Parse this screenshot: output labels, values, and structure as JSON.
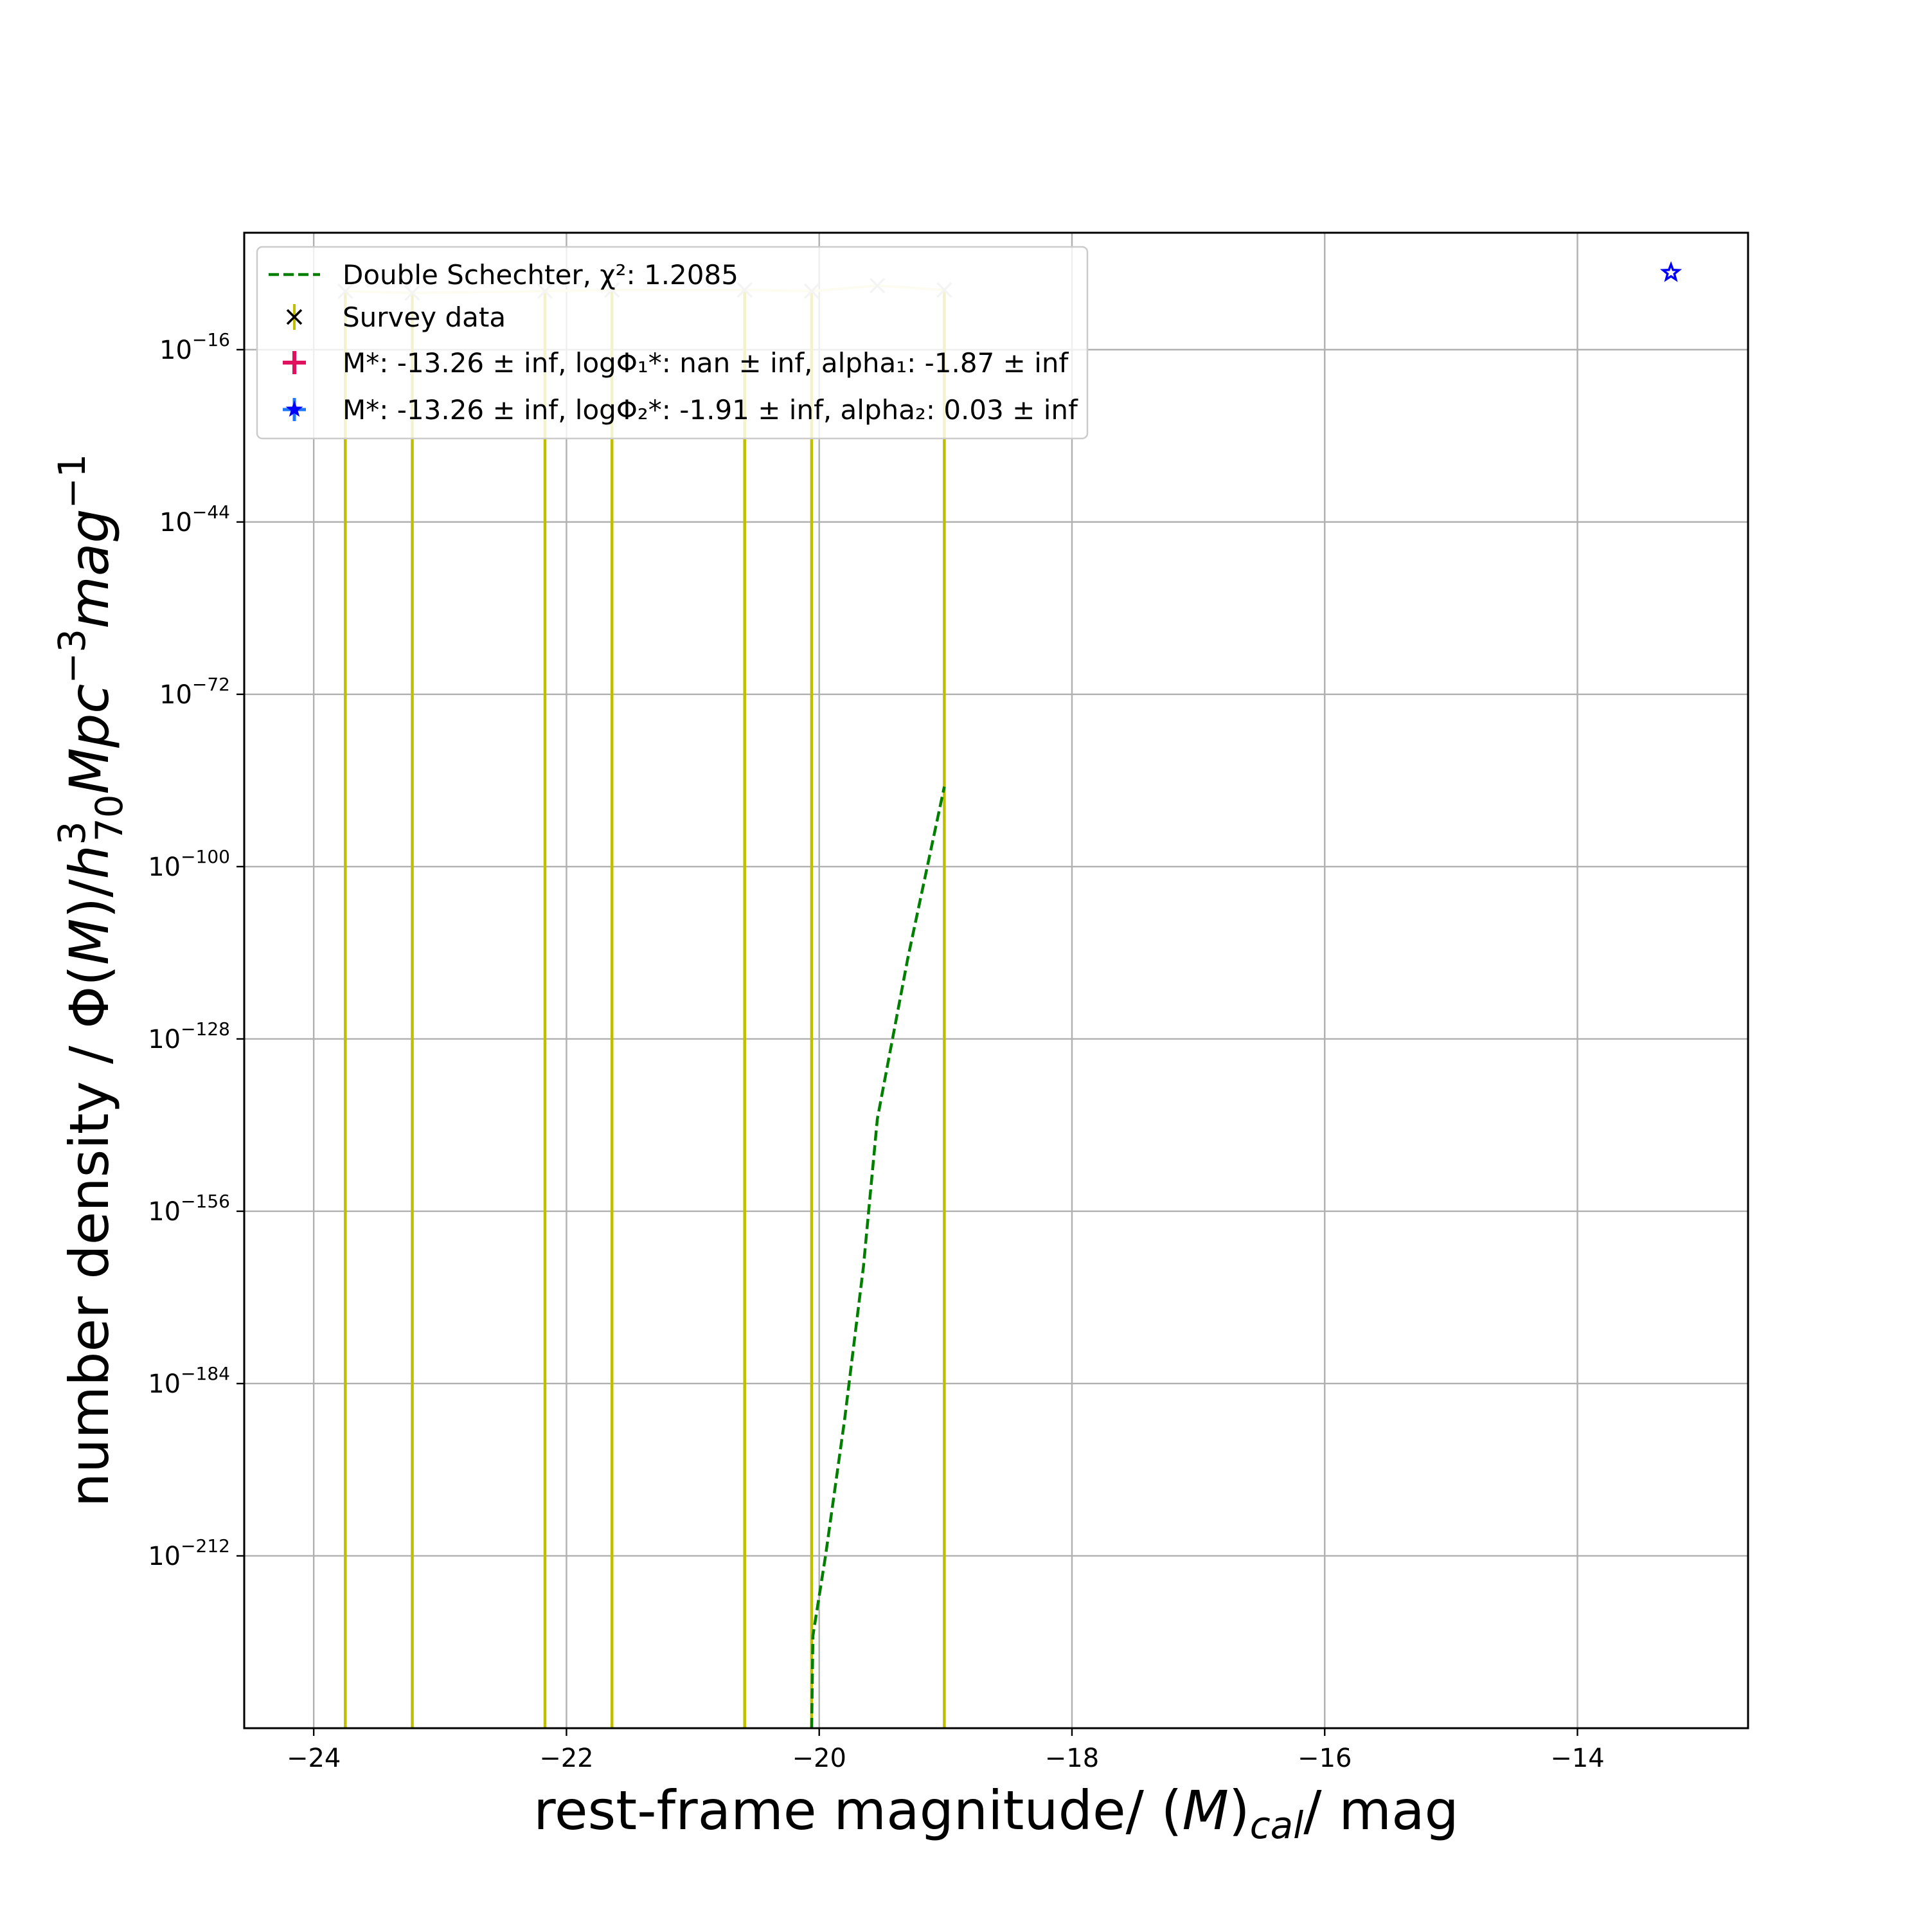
{
  "chart_data": {
    "type": "line",
    "xlabel": "rest-frame magnitude/ (M)cal/ mag",
    "ylabel": "number density / Φ(M)/h70³Mpc⁻³mag⁻¹",
    "xlim": [
      -24.55,
      -12.65
    ],
    "ylim_log10": [
      -240,
      3
    ],
    "y_scale": "log",
    "grid": true,
    "legend_position": "top-left",
    "x_ticks": [
      {
        "value": -24,
        "label": "−24"
      },
      {
        "value": -22,
        "label": "−22"
      },
      {
        "value": -20,
        "label": "−20"
      },
      {
        "value": -18,
        "label": "−18"
      },
      {
        "value": -16,
        "label": "−16"
      },
      {
        "value": -14,
        "label": "−14"
      }
    ],
    "y_ticks": [
      {
        "exp": -16,
        "base": "10",
        "exponent": "−16"
      },
      {
        "exp": -44,
        "base": "10",
        "exponent": "−44"
      },
      {
        "exp": -72,
        "base": "10",
        "exponent": "−72"
      },
      {
        "exp": -100,
        "base": "10",
        "exponent": "−100"
      },
      {
        "exp": -128,
        "base": "10",
        "exponent": "−128"
      },
      {
        "exp": -156,
        "base": "10",
        "exponent": "−156"
      },
      {
        "exp": -184,
        "base": "10",
        "exponent": "−184"
      },
      {
        "exp": -212,
        "base": "10",
        "exponent": "−212"
      }
    ],
    "legend": [
      {
        "label": "Double Schechter, χ²: 1.2085",
        "marker": "dashed-line",
        "color": "#007f00"
      },
      {
        "label": "Survey data",
        "marker": "x",
        "color": "#000000"
      },
      {
        "label": "M*: -13.26 ± inf, logΦ₁*: nan ± inf, alpha₁: -1.87 ± inf",
        "marker": "plus-errorbar",
        "color": "#e0115f"
      },
      {
        "label": "M*: -13.26 ± inf, logΦ₂*: -1.91 ± inf, alpha₂: 0.03 ± inf",
        "marker": "star-errorbar",
        "color": "#1f77ff"
      }
    ],
    "series": [
      {
        "name": "Survey data",
        "color": "#bfbf00",
        "marker": "x",
        "x": [
          -23.75,
          -23.22,
          -22.17,
          -21.64,
          -20.59,
          -20.06,
          -19.54,
          -19.01
        ],
        "log10_y": [
          -6.5,
          -6.8,
          -6.5,
          -6.3,
          -6.3,
          -6.5,
          -5.6,
          -6.3
        ],
        "log10_y_lower": [
          -240,
          -240,
          -240,
          -240,
          -240,
          -240,
          null,
          -240
        ]
      },
      {
        "name": "Double Schechter, χ²: 1.2085",
        "color": "#007f00",
        "style": "dashed",
        "x": [
          -20.06,
          -20.05,
          -19.95,
          -19.8,
          -19.65,
          -19.54,
          -19.3,
          -19.01
        ],
        "log10_y": [
          -240,
          -225,
          -212,
          -190,
          -165,
          -141,
          -115,
          -87
        ]
      },
      {
        "name": "M*",
        "color": "#0000ff",
        "marker": "star",
        "x": [
          -13.26
        ],
        "log10_y": [
          -3.5
        ]
      }
    ]
  }
}
